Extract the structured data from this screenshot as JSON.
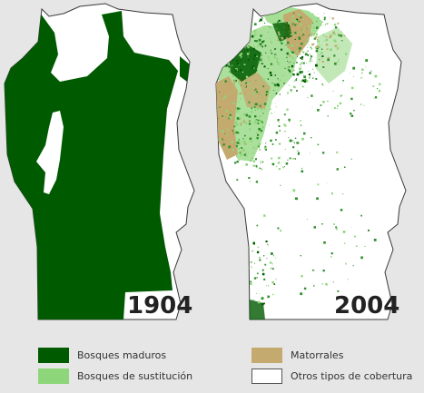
{
  "maps": [
    {
      "year_label": "1904"
    },
    {
      "year_label": "2004"
    }
  ],
  "legend": [
    {
      "label": "Bosques maduros",
      "color": "#005a00"
    },
    {
      "label": "Bosques de sustitución",
      "color": "#8ed67a"
    },
    {
      "label": "Matorrales",
      "color": "#c4aa6e"
    },
    {
      "label": "Otros tipos de cobertura",
      "color": "#ffffff"
    }
  ],
  "colors": {
    "background": "#e6e6e6",
    "province_fill": "#ffffff",
    "province_outline": "#3a3a3a",
    "mature_forest": "#005a00",
    "secondary_forest": "#8ed67a",
    "scrubland": "#c4aa6e"
  }
}
